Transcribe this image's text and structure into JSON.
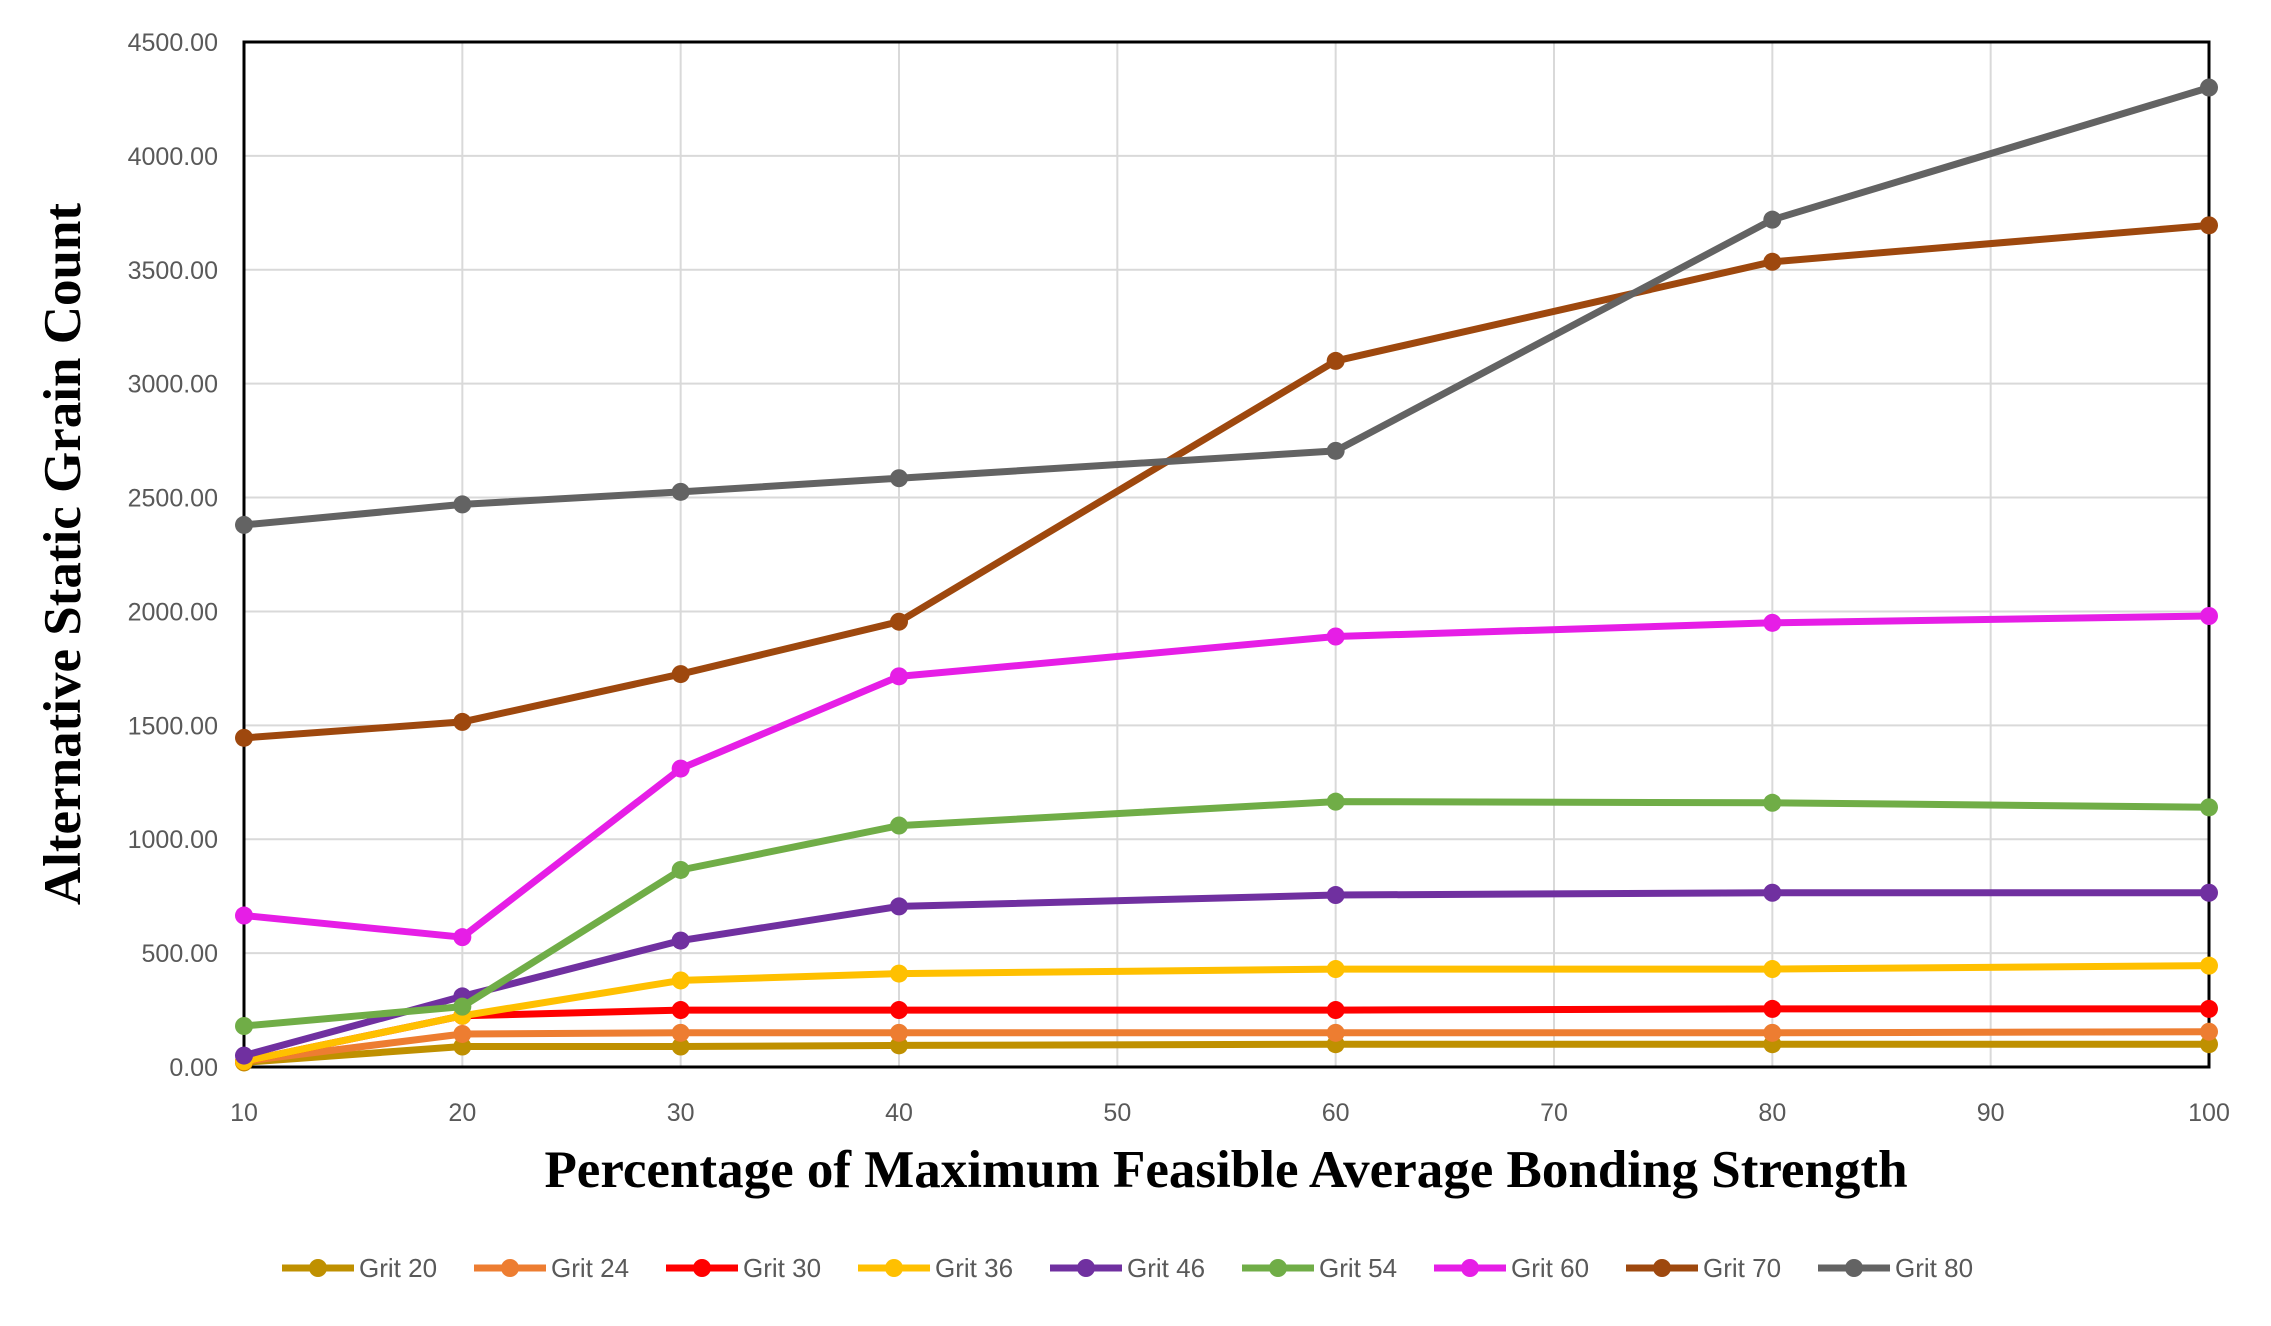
{
  "chart_data": {
    "type": "line",
    "title": "",
    "xlabel": "Percentage of Maximum Feasible Average Bonding Strength",
    "ylabel": "Alternative Static Grain Count",
    "xlim": [
      10,
      100
    ],
    "ylim": [
      0,
      4500
    ],
    "x_ticks": [
      "10",
      "20",
      "30",
      "40",
      "50",
      "60",
      "70",
      "80",
      "90",
      "100"
    ],
    "y_ticks": [
      "0.00",
      "500.00",
      "1000.00",
      "1500.00",
      "2000.00",
      "2500.00",
      "3000.00",
      "3500.00",
      "4000.00",
      "4500.00"
    ],
    "x_tick_values": [
      10,
      20,
      30,
      40,
      50,
      60,
      70,
      80,
      90,
      100
    ],
    "y_tick_values": [
      0,
      500,
      1000,
      1500,
      2000,
      2500,
      3000,
      3500,
      4000,
      4500
    ],
    "grid": true,
    "legend_position": "bottom",
    "x": [
      10,
      20,
      30,
      40,
      60,
      80,
      100
    ],
    "series": [
      {
        "name": "Grit 20",
        "color": "#BF9000",
        "values": [
          20,
          90,
          90,
          95,
          100,
          100,
          100
        ]
      },
      {
        "name": "Grit 24",
        "color": "#ED7D31",
        "values": [
          25,
          145,
          150,
          150,
          150,
          150,
          155
        ]
      },
      {
        "name": "Grit 30",
        "color": "#FF0000",
        "values": [
          25,
          225,
          250,
          250,
          250,
          255,
          255
        ]
      },
      {
        "name": "Grit 36",
        "color": "#FFC000",
        "values": [
          25,
          225,
          380,
          410,
          430,
          430,
          445
        ]
      },
      {
        "name": "Grit 46",
        "color": "#7030A0",
        "values": [
          50,
          310,
          555,
          705,
          755,
          765,
          765
        ]
      },
      {
        "name": "Grit 54",
        "color": "#70AD47",
        "values": [
          180,
          265,
          865,
          1060,
          1165,
          1160,
          1140
        ]
      },
      {
        "name": "Grit 60",
        "color": "#E61EE6",
        "values": [
          665,
          570,
          1310,
          1715,
          1890,
          1950,
          1980
        ]
      },
      {
        "name": "Grit 70",
        "color": "#9E480E",
        "values": [
          1445,
          1515,
          1725,
          1955,
          3100,
          3535,
          3695
        ]
      },
      {
        "name": "Grit 80",
        "color": "#636363",
        "values": [
          2380,
          2470,
          2525,
          2585,
          2705,
          3720,
          4300
        ]
      }
    ]
  }
}
